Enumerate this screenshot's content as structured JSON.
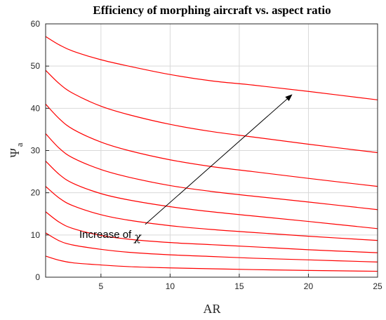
{
  "chart_data": {
    "type": "line",
    "title": "Efficiency of morphing aircraft vs. aspect ratio",
    "xlabel": "AR",
    "ylabel_main": "Ψ",
    "ylabel_sub": "a",
    "xlim": [
      1,
      25
    ],
    "ylim": [
      0,
      60
    ],
    "xticks": [
      5,
      10,
      15,
      20,
      25
    ],
    "yticks": [
      0,
      10,
      20,
      30,
      40,
      50,
      60
    ],
    "grid": true,
    "line_color": "#ff0000",
    "x": [
      1,
      2,
      3,
      5,
      7,
      10,
      13,
      16,
      20,
      25
    ],
    "series": [
      {
        "values": [
          57,
          55,
          53.5,
          51.5,
          50,
          48,
          46.5,
          45.5,
          44,
          42
        ]
      },
      {
        "values": [
          49,
          45.8,
          43.5,
          40.5,
          38.5,
          36.2,
          34.5,
          33.2,
          31.5,
          29.5
        ]
      },
      {
        "values": [
          41,
          37.5,
          35,
          32,
          30,
          27.8,
          26.2,
          25,
          23.4,
          21.5
        ]
      },
      {
        "values": [
          34,
          30.5,
          28.2,
          25.5,
          23.7,
          21.7,
          20.3,
          19.2,
          17.8,
          16
        ]
      },
      {
        "values": [
          27.5,
          24.3,
          22.2,
          19.8,
          18.3,
          16.7,
          15.5,
          14.5,
          13.2,
          11.5
        ]
      },
      {
        "values": [
          21.5,
          18.7,
          16.9,
          14.8,
          13.5,
          12.2,
          11.3,
          10.6,
          9.7,
          8.7
        ]
      },
      {
        "values": [
          15.5,
          13,
          11.5,
          9.9,
          9,
          8.2,
          7.7,
          7.2,
          6.5,
          5.8
        ]
      },
      {
        "values": [
          10.5,
          8.6,
          7.6,
          6.6,
          5.9,
          5.3,
          4.9,
          4.5,
          4.1,
          3.6
        ]
      },
      {
        "values": [
          5,
          4,
          3.4,
          2.9,
          2.5,
          2.2,
          2,
          1.8,
          1.6,
          1.4
        ]
      }
    ],
    "annotation": {
      "text": "Increase of",
      "symbol": "χ",
      "arrow_from": [
        8.2,
        12.5
      ],
      "arrow_to": [
        18.8,
        43.2
      ]
    }
  }
}
